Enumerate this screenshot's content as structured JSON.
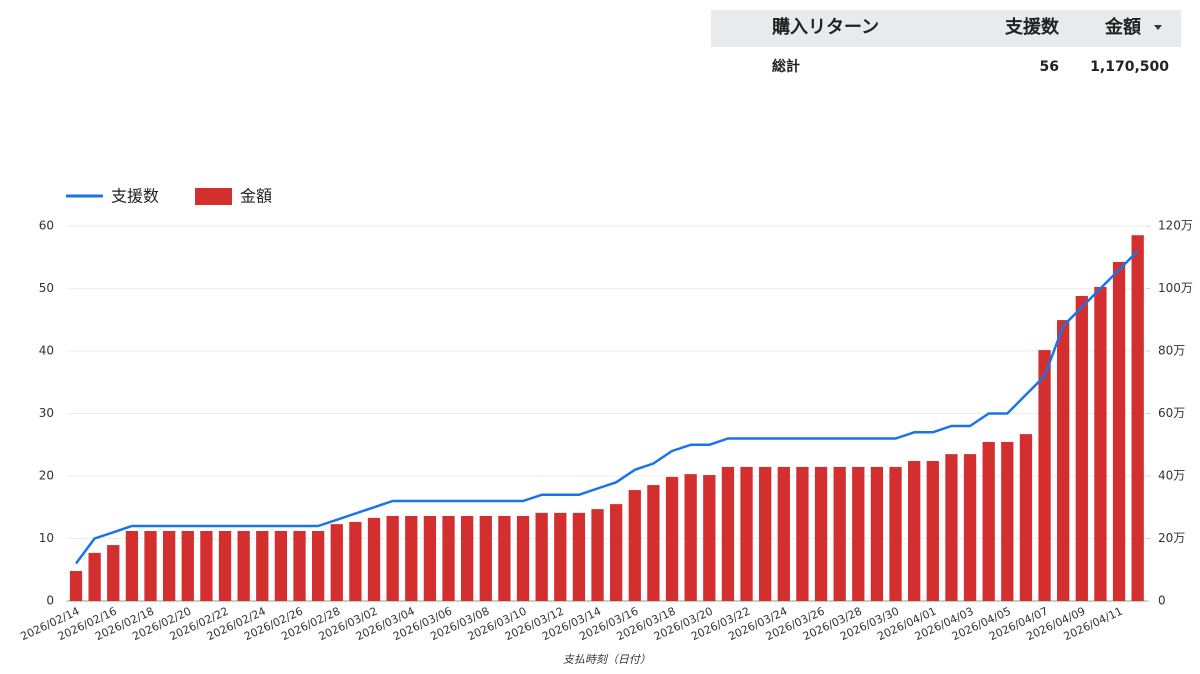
{
  "table": {
    "headers": [
      "購入リターン",
      "支援数",
      "金額"
    ],
    "total_row": [
      "総計",
      "56",
      "1,170,500"
    ]
  },
  "chart_data": {
    "type": "bar",
    "x_label": "支払時刻（日付）",
    "categories": [
      "2026/02/14",
      null,
      "2026/02/16",
      null,
      "2026/02/18",
      null,
      "2026/02/20",
      null,
      "2026/02/22",
      null,
      "2026/02/24",
      null,
      "2026/02/26",
      null,
      "2026/02/28",
      null,
      "2026/03/02",
      null,
      "2026/03/04",
      null,
      "2026/03/06",
      null,
      "2026/03/08",
      null,
      "2026/03/10",
      null,
      "2026/03/12",
      null,
      "2026/03/14",
      null,
      "2026/03/16",
      null,
      "2026/03/18",
      null,
      "2026/03/20",
      null,
      "2026/03/22",
      null,
      "2026/03/24",
      null,
      "2026/03/26",
      null,
      "2026/03/28",
      null,
      "2026/03/30",
      null,
      "2026/04/01",
      null,
      "2026/04/03",
      null,
      "2026/04/05",
      null,
      "2026/04/07",
      null,
      "2026/04/09",
      null,
      "2026/04/11",
      null
    ],
    "series": [
      {
        "name": "支援数",
        "type": "line",
        "color": "#1a73e8",
        "values": [
          6,
          10,
          11,
          12,
          12,
          12,
          12,
          12,
          12,
          12,
          12,
          12,
          12,
          12,
          13,
          14,
          15,
          16,
          16,
          16,
          16,
          16,
          16,
          16,
          16,
          17,
          17,
          17,
          18,
          19,
          21,
          22,
          24,
          25,
          25,
          26,
          26,
          26,
          26,
          26,
          26,
          26,
          26,
          26,
          26,
          27,
          27,
          28,
          28,
          30,
          30,
          33,
          36,
          44,
          47,
          50,
          53,
          56
        ]
      },
      {
        "name": "金額",
        "type": "bar",
        "axis": "y2",
        "color": "#d32f2f",
        "values": [
          96000,
          154000,
          179000,
          224000,
          224000,
          224000,
          224000,
          224000,
          224000,
          224000,
          224000,
          224000,
          224000,
          224000,
          246000,
          253000,
          266000,
          272000,
          272000,
          272000,
          272000,
          272000,
          272000,
          272000,
          272000,
          282000,
          282000,
          282000,
          294000,
          310000,
          355000,
          371000,
          397000,
          406000,
          403000,
          429000,
          429000,
          429000,
          429000,
          429000,
          429000,
          429000,
          429000,
          429000,
          429000,
          448000,
          448000,
          470000,
          470000,
          509000,
          509000,
          534000,
          803000,
          899000,
          976000,
          1005000,
          1085000,
          1170500
        ]
      }
    ],
    "ylim": [
      0,
      60
    ],
    "yticks": [
      0,
      10,
      20,
      30,
      40,
      50,
      60
    ],
    "y2lim": [
      0,
      1200000
    ],
    "y2ticks": [
      0,
      {
        "value": 200000,
        "label": "20万"
      },
      {
        "value": 400000,
        "label": "40万"
      },
      {
        "value": 600000,
        "label": "60万"
      },
      {
        "value": 800000,
        "label": "80万"
      },
      {
        "value": 1000000,
        "label": "100万"
      },
      {
        "value": 1200000,
        "label": "120万"
      }
    ],
    "grid": true,
    "legend": "top-left"
  }
}
